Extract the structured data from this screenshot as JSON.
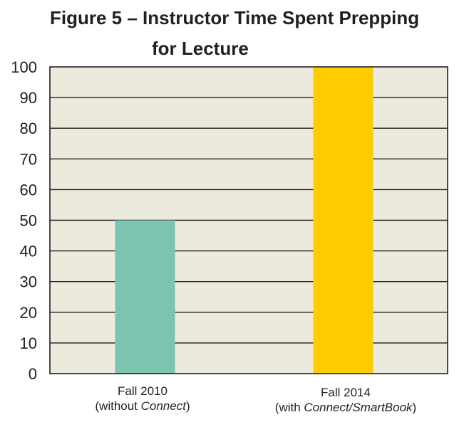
{
  "chart_data": {
    "type": "bar",
    "title_line1": "Figure 5 – Instructor Time Spent Prepping",
    "title_line2": "for Lecture",
    "categories": [
      {
        "line1": "Fall 2010",
        "line2_prefix": "(without ",
        "line2_emph": "Connect",
        "line2_suffix": ")"
      },
      {
        "line1": "Fall 2014",
        "line2_prefix": "(with ",
        "line2_emph": "Connect/SmartBook",
        "line2_suffix": ")"
      }
    ],
    "values": [
      50,
      100
    ],
    "bar_colors": [
      "#7cc4af",
      "#ffcc00"
    ],
    "plot_background": "#ece9dd",
    "gridline_color": "#231f20",
    "ylim": [
      0,
      100
    ],
    "yticks": [
      0,
      10,
      20,
      30,
      40,
      50,
      60,
      70,
      80,
      90,
      100
    ],
    "grid": true,
    "xlabel": "",
    "ylabel": ""
  }
}
